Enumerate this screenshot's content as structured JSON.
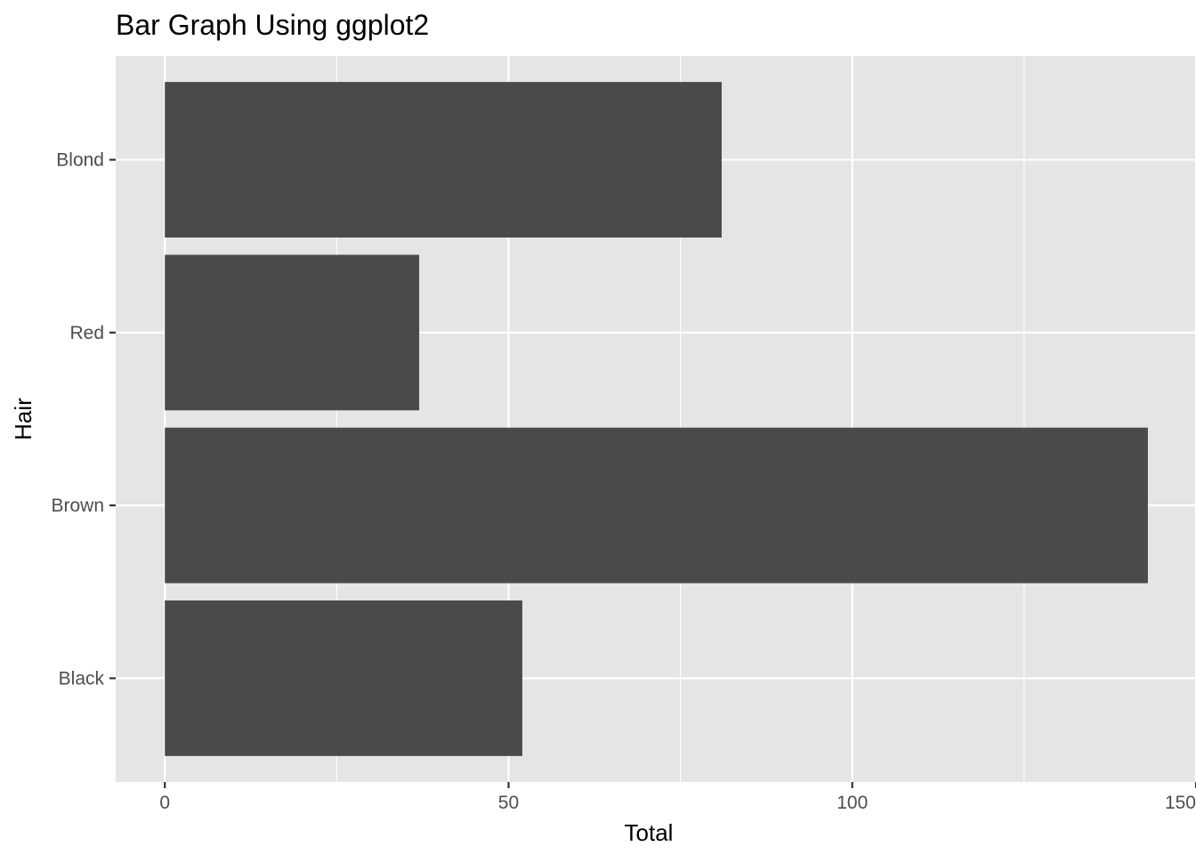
{
  "chart_data": {
    "type": "bar",
    "orientation": "horizontal",
    "title": "Bar Graph Using ggplot2",
    "xlabel": "Total",
    "ylabel": "Hair",
    "categories": [
      "Black",
      "Brown",
      "Red",
      "Blond"
    ],
    "values": [
      52,
      143,
      37,
      81
    ],
    "xlim": [
      -7.15,
      150
    ],
    "xticks": [
      0,
      50,
      100,
      150
    ],
    "grid": true,
    "legend": "none",
    "colors": {
      "bar": "#4a4a4a",
      "panel_background": "#e5e5e5",
      "grid_line": "#ffffff",
      "tick_label": "#4d4d4d"
    }
  }
}
